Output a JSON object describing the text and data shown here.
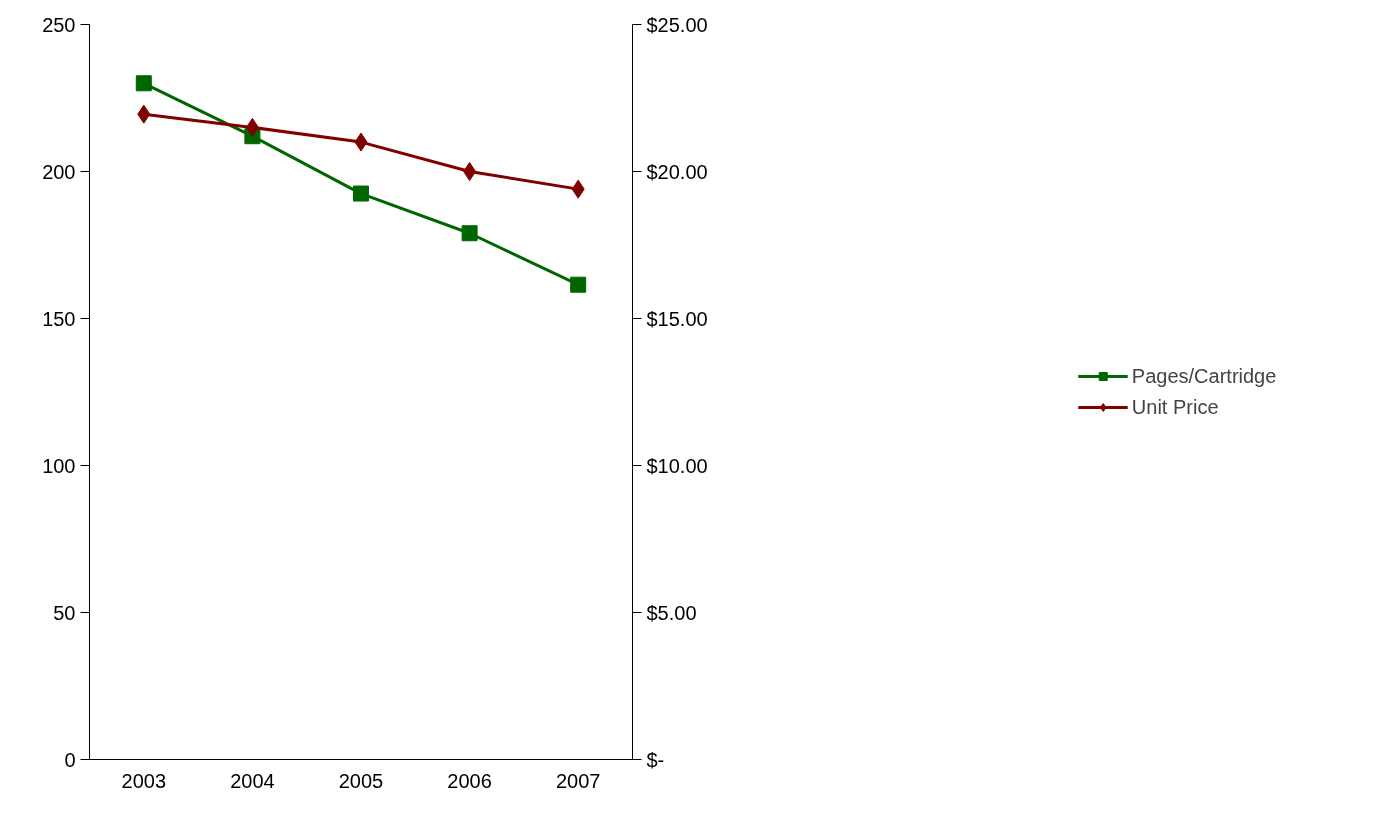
{
  "chart_data": {
    "type": "line",
    "categories": [
      "2003",
      "2004",
      "2005",
      "2006",
      "2007"
    ],
    "series": [
      {
        "name": "Pages/Cartridge",
        "color": "#006600",
        "marker": "square",
        "values": [
          230,
          212,
          192.5,
          179,
          161.5
        ]
      },
      {
        "name": "Unit Price",
        "color": "#800000",
        "marker": "diamond",
        "axis": "y2",
        "values": [
          21.95,
          21.5,
          21.0,
          20.0,
          19.4
        ]
      }
    ],
    "ylim": [
      0,
      250
    ],
    "yticks": [
      0,
      50,
      100,
      150,
      200,
      250
    ],
    "y2lim": [
      0,
      25
    ],
    "y2ticks": [
      {
        "value": 0,
        "label": "$-"
      },
      {
        "value": 5,
        "label": "$5.00"
      },
      {
        "value": 10,
        "label": "$10.00"
      },
      {
        "value": 15,
        "label": "$15.00"
      },
      {
        "value": 20,
        "label": "$20.00"
      },
      {
        "value": 25,
        "label": "$25.00"
      }
    ],
    "grid": false,
    "legend": "right",
    "line_style": "solid"
  }
}
